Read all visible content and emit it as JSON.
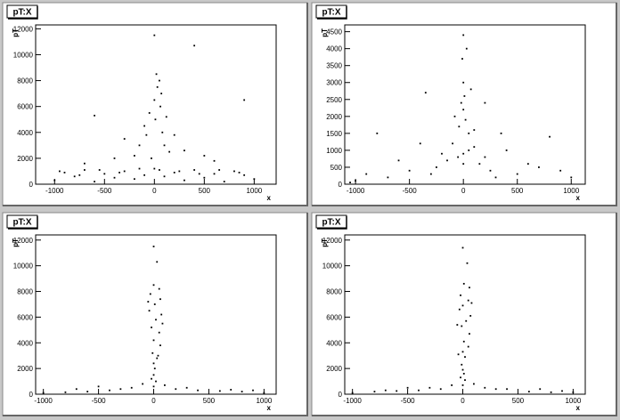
{
  "chart_data": [
    {
      "type": "scatter",
      "title": "pT:X",
      "x_label": "x",
      "y_label": "pT",
      "color": "#000000",
      "xlim": [
        -1190,
        1220
      ],
      "ylim": [
        0,
        12300
      ],
      "xticks": [
        -1000,
        -500,
        0,
        500,
        1000
      ],
      "yticks": [
        0,
        2000,
        4000,
        6000,
        8000,
        10000,
        12000
      ],
      "x": [
        -1000,
        -900,
        -800,
        -700,
        -600,
        -500,
        -400,
        -300,
        -200,
        -100,
        0,
        100,
        200,
        300,
        400,
        500,
        600,
        700,
        800,
        900,
        1000,
        -950,
        -750,
        -550,
        -350,
        -150,
        50,
        250,
        450,
        650,
        850,
        -150,
        -100,
        -50,
        0,
        30,
        50,
        20,
        60,
        80,
        100,
        150,
        -200,
        0,
        400,
        900,
        -600,
        -300,
        200,
        -30,
        70,
        10,
        -80,
        120,
        300,
        -400,
        500,
        600,
        -700
      ],
      "values": [
        300,
        900,
        600,
        1100,
        200,
        800,
        500,
        1000,
        400,
        700,
        1200,
        600,
        900,
        300,
        1100,
        500,
        800,
        200,
        1000,
        700,
        400,
        1000,
        700,
        1100,
        900,
        1200,
        1100,
        1000,
        800,
        1100,
        900,
        3000,
        4500,
        5500,
        6500,
        7500,
        8000,
        8500,
        6000,
        4000,
        3000,
        2500,
        2200,
        11500,
        10700,
        6500,
        5300,
        3500,
        3800,
        2000,
        7000,
        5000,
        3800,
        5200,
        2600,
        2000,
        2200,
        1800,
        1600
      ]
    },
    {
      "type": "scatter",
      "title": "pT:X",
      "x_label": "x",
      "y_label": "pT",
      "color": "#000000",
      "xlim": [
        -1100,
        1130
      ],
      "ylim": [
        0,
        4700
      ],
      "xticks": [
        -1000,
        -500,
        0,
        500,
        1000
      ],
      "yticks": [
        0,
        500,
        1000,
        1500,
        2000,
        2500,
        3000,
        3500,
        4000,
        4500
      ],
      "x": [
        0,
        30,
        -10,
        0,
        10,
        -20,
        0,
        20,
        -40,
        50,
        -100,
        100,
        -200,
        200,
        -150,
        150,
        -250,
        250,
        0,
        -50,
        50,
        0,
        -300,
        300,
        -500,
        500,
        -700,
        700,
        -900,
        900,
        -1000,
        1000,
        -600,
        600,
        -400,
        400,
        -800,
        800,
        200,
        -350,
        -1050,
        100,
        -80,
        70,
        350
      ],
      "values": [
        4400,
        4000,
        3700,
        3000,
        2600,
        2400,
        2200,
        1900,
        1700,
        1500,
        1200,
        1100,
        900,
        800,
        700,
        600,
        500,
        400,
        900,
        800,
        1000,
        600,
        300,
        200,
        400,
        300,
        200,
        500,
        300,
        400,
        100,
        200,
        700,
        600,
        1200,
        1000,
        1500,
        1400,
        2400,
        2700,
        50,
        1600,
        2000,
        2800,
        1500
      ]
    },
    {
      "type": "scatter",
      "title": "pT:X",
      "x_label": "x",
      "y_label": "pT",
      "color": "#000000",
      "xlim": [
        -1070,
        1110
      ],
      "ylim": [
        0,
        12400
      ],
      "xticks": [
        -1000,
        -500,
        0,
        500,
        1000
      ],
      "yticks": [
        0,
        2000,
        4000,
        6000,
        8000,
        10000,
        12000
      ],
      "x": [
        0,
        30,
        0,
        50,
        -30,
        60,
        10,
        -40,
        70,
        20,
        -20,
        50,
        0,
        60,
        -10,
        30,
        0,
        10,
        0,
        -20,
        20,
        -100,
        100,
        -200,
        200,
        0,
        -400,
        400,
        -600,
        600,
        -800,
        800,
        -1000,
        1000,
        -300,
        300,
        -700,
        700,
        -500,
        900,
        80,
        -50,
        40
      ],
      "values": [
        11500,
        10300,
        8500,
        8200,
        7800,
        7400,
        7000,
        6500,
        6200,
        5800,
        5200,
        4800,
        4200,
        3800,
        3200,
        2800,
        2400,
        2000,
        1500,
        1200,
        1000,
        800,
        700,
        500,
        400,
        600,
        300,
        300,
        200,
        250,
        150,
        200,
        100,
        100,
        400,
        500,
        400,
        350,
        600,
        300,
        5500,
        7200,
        3000
      ]
    },
    {
      "type": "scatter",
      "title": "pT:X",
      "x_label": "x",
      "y_label": "pT",
      "color": "#000000",
      "xlim": [
        -1070,
        1110
      ],
      "ylim": [
        0,
        12400
      ],
      "xticks": [
        -1000,
        -500,
        0,
        500,
        1000
      ],
      "yticks": [
        0,
        2000,
        4000,
        6000,
        8000,
        10000,
        12000
      ],
      "x": [
        0,
        40,
        10,
        60,
        -20,
        50,
        0,
        -30,
        70,
        30,
        -10,
        60,
        10,
        50,
        0,
        20,
        -10,
        0,
        10,
        -20,
        20,
        -100,
        100,
        -200,
        200,
        0,
        -400,
        400,
        -600,
        600,
        -800,
        800,
        -1000,
        1000,
        -300,
        300,
        -700,
        700,
        -500,
        900,
        -50,
        80,
        -40
      ],
      "values": [
        11400,
        10200,
        8600,
        8300,
        7700,
        7300,
        6900,
        6600,
        6100,
        5700,
        5300,
        4700,
        4100,
        3700,
        3300,
        2900,
        2300,
        1900,
        1600,
        1300,
        1100,
        700,
        800,
        400,
        500,
        700,
        300,
        400,
        250,
        200,
        200,
        150,
        100,
        150,
        500,
        400,
        300,
        400,
        500,
        250,
        5400,
        7100,
        3100
      ]
    }
  ]
}
